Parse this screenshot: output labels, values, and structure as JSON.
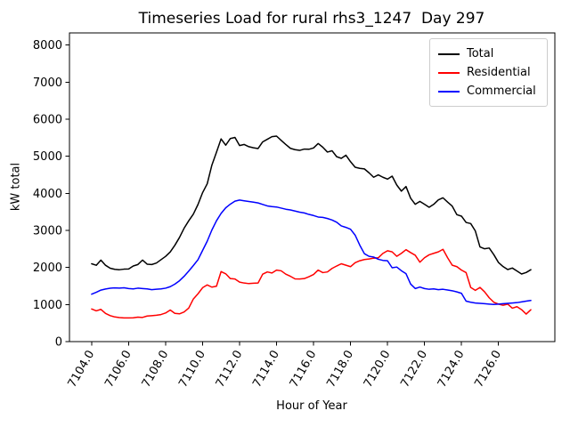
{
  "chart_data": {
    "type": "line",
    "title": "Timeseries Load for rural rhs3_1247  Day 297",
    "xlabel": "Hour of Year",
    "ylabel": "kW total",
    "grid": false,
    "background_color": "#ffffff",
    "axes_color": "#000000",
    "legend_position": "upper right",
    "legend_border_color": "#cccccc",
    "xlim": [
      7102.8,
      7129.05
    ],
    "ylim": [
      0,
      8330
    ],
    "x_ticks": [
      7104,
      7106,
      7108,
      7110,
      7112,
      7114,
      7116,
      7118,
      7120,
      7122,
      7124,
      7126
    ],
    "x_tick_labels": [
      "7104.0",
      "7106.0",
      "7108.0",
      "7110.0",
      "7112.0",
      "7114.0",
      "7116.0",
      "7118.0",
      "7120.0",
      "7122.0",
      "7124.0",
      "7126.0"
    ],
    "x_tick_rotation_deg": 60,
    "y_ticks": [
      0,
      1000,
      2000,
      3000,
      4000,
      5000,
      6000,
      7000,
      8000
    ],
    "y_tick_labels": [
      "0",
      "1000",
      "2000",
      "3000",
      "4000",
      "5000",
      "6000",
      "7000",
      "8000"
    ],
    "x_start": 7104.0,
    "x_step": 0.25,
    "series": [
      {
        "name": "Total",
        "color": "#000000",
        "values": [
          2100,
          2060,
          2200,
          2060,
          1980,
          1950,
          1940,
          1955,
          1960,
          2040,
          2080,
          2200,
          2090,
          2080,
          2120,
          2210,
          2300,
          2420,
          2600,
          2810,
          3060,
          3260,
          3440,
          3700,
          4020,
          4260,
          4760,
          5110,
          5470,
          5300,
          5480,
          5510,
          5290,
          5320,
          5260,
          5230,
          5210,
          5390,
          5460,
          5530,
          5545,
          5430,
          5320,
          5215,
          5180,
          5160,
          5195,
          5190,
          5225,
          5345,
          5245,
          5115,
          5150,
          4990,
          4945,
          5030,
          4855,
          4705,
          4675,
          4660,
          4555,
          4435,
          4500,
          4435,
          4385,
          4465,
          4225,
          4060,
          4185,
          3870,
          3705,
          3785,
          3705,
          3625,
          3705,
          3825,
          3880,
          3765,
          3655,
          3425,
          3385,
          3215,
          3185,
          2985,
          2555,
          2505,
          2525,
          2345,
          2135,
          2025,
          1945,
          1985,
          1905,
          1825,
          1865,
          1940
        ]
      },
      {
        "name": "Residential",
        "color": "#ff0000",
        "values": [
          880,
          830,
          870,
          760,
          700,
          665,
          648,
          640,
          640,
          642,
          660,
          652,
          690,
          700,
          712,
          730,
          772,
          852,
          762,
          750,
          800,
          905,
          1150,
          1290,
          1455,
          1530,
          1470,
          1495,
          1890,
          1830,
          1700,
          1690,
          1605,
          1580,
          1565,
          1575,
          1582,
          1820,
          1880,
          1852,
          1930,
          1910,
          1820,
          1762,
          1692,
          1690,
          1700,
          1752,
          1812,
          1930,
          1862,
          1880,
          1975,
          2040,
          2100,
          2062,
          2022,
          2130,
          2182,
          2215,
          2230,
          2252,
          2262,
          2380,
          2452,
          2422,
          2302,
          2382,
          2480,
          2402,
          2330,
          2142,
          2262,
          2342,
          2382,
          2422,
          2490,
          2262,
          2062,
          2022,
          1930,
          1862,
          1462,
          1382,
          1462,
          1342,
          1182,
          1062,
          1012,
          982,
          1012,
          902,
          942,
          862,
          742,
          860
        ]
      },
      {
        "name": "Commercial",
        "color": "#0000ff",
        "values": [
          1280,
          1330,
          1390,
          1420,
          1440,
          1450,
          1442,
          1452,
          1432,
          1422,
          1442,
          1432,
          1422,
          1402,
          1412,
          1422,
          1442,
          1482,
          1552,
          1642,
          1762,
          1902,
          2052,
          2210,
          2460,
          2710,
          3010,
          3260,
          3460,
          3610,
          3710,
          3790,
          3820,
          3800,
          3782,
          3762,
          3742,
          3702,
          3662,
          3642,
          3632,
          3602,
          3572,
          3552,
          3522,
          3492,
          3472,
          3432,
          3402,
          3362,
          3352,
          3322,
          3282,
          3222,
          3122,
          3082,
          3032,
          2872,
          2602,
          2372,
          2302,
          2282,
          2222,
          2192,
          2182,
          1992,
          2012,
          1912,
          1832,
          1552,
          1432,
          1472,
          1432,
          1412,
          1422,
          1402,
          1412,
          1392,
          1372,
          1342,
          1302,
          1092,
          1062,
          1042,
          1032,
          1022,
          1012,
          1002,
          1012,
          1022,
          1032,
          1042,
          1052,
          1072,
          1092,
          1110
        ]
      }
    ]
  }
}
